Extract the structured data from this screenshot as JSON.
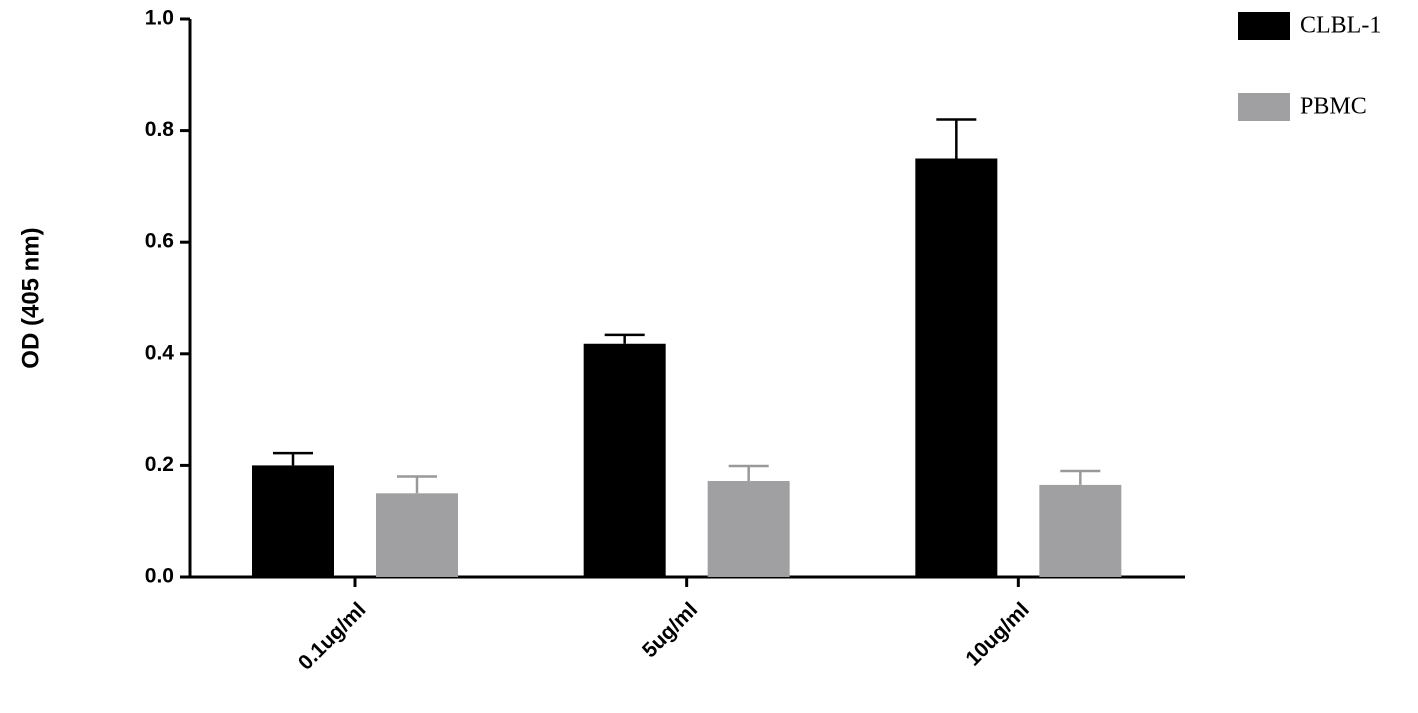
{
  "chart_data": {
    "type": "bar",
    "y_label": "OD (405 nm)",
    "categories": [
      "0.1ug/ml",
      "5ug/ml",
      "10ug/ml"
    ],
    "series": [
      {
        "name": "CLBL-1",
        "color": "#000000",
        "values": [
          0.2,
          0.418,
          0.75
        ],
        "errors": [
          0.022,
          0.016,
          0.07
        ]
      },
      {
        "name": "PBMC",
        "color": "#a0a0a2",
        "values": [
          0.15,
          0.172,
          0.165
        ],
        "errors": [
          0.03,
          0.027,
          0.025
        ]
      }
    ],
    "ylim": [
      0,
      1
    ],
    "yticks": [
      {
        "value": 0,
        "label": "0.0"
      },
      0.2,
      0.4,
      0.6,
      0.8,
      {
        "value": 1,
        "label": "1.0"
      }
    ],
    "grid": false
  }
}
